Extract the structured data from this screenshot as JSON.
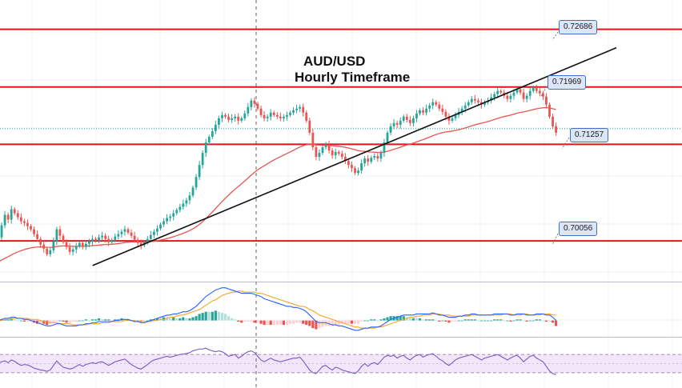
{
  "title": {
    "line1": "AUD/USD",
    "line2": "Hourly Timeframe"
  },
  "colors": {
    "bull": "#26a69a",
    "bear": "#ef5350",
    "level_line": "#e0141e",
    "ema": "#e8564f",
    "trendline": "#111111",
    "macd": "#2962ff",
    "signal": "#f5a623",
    "rsi": "#7e57c2",
    "rsi_band": "#f2e6fb",
    "tag_bg": "#dce6f7",
    "tag_border": "#3f6fc4"
  },
  "chart_data": [
    {
      "type": "candlestick",
      "title": "AUD/USD Hourly Timeframe",
      "ylim": [
        0.6955,
        0.7305
      ],
      "levels": [
        {
          "label": "0.72686",
          "value": 0.72686
        },
        {
          "label": "0.71969",
          "value": 0.71969
        },
        {
          "label": "0.71257",
          "value": 0.71257
        },
        {
          "label": "0.70056",
          "value": 0.70056
        }
      ],
      "closes": [
        0.701,
        0.7025,
        0.7038,
        0.7032,
        0.7045,
        0.704,
        0.7035,
        0.703,
        0.7028,
        0.7024,
        0.702,
        0.7014,
        0.7008,
        0.7001,
        0.6996,
        0.6989,
        0.6994,
        0.7005,
        0.702,
        0.7012,
        0.7004,
        0.6998,
        0.6992,
        0.6995,
        0.6999,
        0.7003,
        0.6998,
        0.7002,
        0.7005,
        0.7008,
        0.7006,
        0.701,
        0.7012,
        0.7008,
        0.7004,
        0.7007,
        0.7011,
        0.7014,
        0.7017,
        0.702,
        0.7016,
        0.7012,
        0.7007,
        0.7003,
        0.7,
        0.7004,
        0.7008,
        0.7013,
        0.7017,
        0.7021,
        0.7026,
        0.703,
        0.7034,
        0.7036,
        0.704,
        0.7044,
        0.7048,
        0.7052,
        0.7056,
        0.7062,
        0.7072,
        0.7085,
        0.71,
        0.7115,
        0.7128,
        0.7135,
        0.7142,
        0.715,
        0.7158,
        0.7162,
        0.716,
        0.7156,
        0.7158,
        0.716,
        0.7155,
        0.7158,
        0.7164,
        0.7172,
        0.718,
        0.7176,
        0.717,
        0.7162,
        0.7158,
        0.716,
        0.7165,
        0.7162,
        0.716,
        0.7158,
        0.716,
        0.7162,
        0.7165,
        0.7168,
        0.717,
        0.7172,
        0.7165,
        0.7155,
        0.714,
        0.7122,
        0.711,
        0.7115,
        0.7122,
        0.7125,
        0.7118,
        0.7112,
        0.7116,
        0.7114,
        0.711,
        0.7105,
        0.71,
        0.7096,
        0.709,
        0.7093,
        0.7102,
        0.7108,
        0.7104,
        0.7109,
        0.7111,
        0.7108,
        0.7115,
        0.7128,
        0.714,
        0.7148,
        0.7152,
        0.715,
        0.7155,
        0.716,
        0.7156,
        0.7152,
        0.7158,
        0.7164,
        0.7168,
        0.7165,
        0.717,
        0.7174,
        0.7178,
        0.7175,
        0.717,
        0.7166,
        0.716,
        0.7155,
        0.7158,
        0.7162,
        0.7166,
        0.717,
        0.7174,
        0.7178,
        0.7182,
        0.718,
        0.7178,
        0.7175,
        0.7178,
        0.718,
        0.7184,
        0.7188,
        0.7192,
        0.719,
        0.7186,
        0.7182,
        0.7186,
        0.719,
        0.7194,
        0.719,
        0.7182,
        0.7186,
        0.7192,
        0.7196,
        0.7192,
        0.7189,
        0.7185,
        0.7175,
        0.716,
        0.7148,
        0.714
      ],
      "ema_period": 50,
      "trendline": [
        {
          "bar": 13,
          "value": 0.6975
        },
        {
          "bar": 140,
          "value": 0.7188
        }
      ]
    },
    {
      "type": "macd",
      "macd": [
        0.0,
        0.1,
        0.2,
        0.2,
        0.3,
        0.3,
        0.2,
        0.2,
        0.1,
        0.1,
        0.0,
        -0.1,
        -0.2,
        -0.3,
        -0.4,
        -0.5,
        -0.5,
        -0.4,
        -0.3,
        -0.3,
        -0.4,
        -0.5,
        -0.5,
        -0.5,
        -0.5,
        -0.4,
        -0.4,
        -0.3,
        -0.3,
        -0.2,
        -0.2,
        -0.1,
        -0.1,
        -0.1,
        -0.1,
        -0.1,
        0.0,
        0.0,
        0.1,
        0.1,
        0.1,
        0.0,
        -0.1,
        -0.1,
        -0.2,
        -0.2,
        -0.1,
        0.0,
        0.1,
        0.2,
        0.3,
        0.4,
        0.5,
        0.5,
        0.6,
        0.6,
        0.7,
        0.8,
        0.8,
        0.9,
        1.1,
        1.3,
        1.6,
        1.9,
        2.2,
        2.4,
        2.6,
        2.8,
        2.9,
        3.0,
        3.0,
        2.9,
        2.8,
        2.7,
        2.6,
        2.5,
        2.5,
        2.5,
        2.5,
        2.4,
        2.3,
        2.2,
        2.0,
        1.9,
        1.8,
        1.7,
        1.6,
        1.5,
        1.4,
        1.3,
        1.3,
        1.2,
        1.2,
        1.1,
        1.0,
        0.8,
        0.5,
        0.2,
        -0.1,
        -0.2,
        -0.2,
        -0.2,
        -0.3,
        -0.4,
        -0.4,
        -0.5,
        -0.5,
        -0.6,
        -0.7,
        -0.8,
        -0.9,
        -0.9,
        -0.8,
        -0.7,
        -0.7,
        -0.6,
        -0.6,
        -0.6,
        -0.5,
        -0.3,
        -0.1,
        0.1,
        0.2,
        0.3,
        0.4,
        0.5,
        0.5,
        0.5,
        0.5,
        0.6,
        0.6,
        0.6,
        0.6,
        0.6,
        0.7,
        0.6,
        0.5,
        0.5,
        0.4,
        0.3,
        0.3,
        0.3,
        0.4,
        0.4,
        0.5,
        0.5,
        0.6,
        0.6,
        0.5,
        0.5,
        0.5,
        0.5,
        0.5,
        0.6,
        0.6,
        0.6,
        0.6,
        0.6,
        0.5,
        0.5,
        0.6,
        0.6,
        0.6,
        0.5,
        0.5,
        0.5,
        0.6,
        0.6,
        0.6,
        0.5,
        0.5,
        0.3,
        0.0,
        -0.3,
        -0.6
      ],
      "signal": [
        0.0,
        0.0,
        0.1,
        0.1,
        0.1,
        0.2,
        0.2,
        0.2,
        0.2,
        0.2,
        0.1,
        0.1,
        0.1,
        0.0,
        -0.1,
        -0.1,
        -0.2,
        -0.2,
        -0.2,
        -0.3,
        -0.3,
        -0.3,
        -0.3,
        -0.4,
        -0.4,
        -0.4,
        -0.4,
        -0.4,
        -0.3,
        -0.3,
        -0.3,
        -0.3,
        -0.2,
        -0.2,
        -0.2,
        -0.1,
        -0.1,
        -0.1,
        -0.1,
        0.0,
        0.0,
        0.0,
        0.0,
        -0.1,
        -0.1,
        -0.1,
        -0.1,
        -0.1,
        0.0,
        0.0,
        0.1,
        0.1,
        0.2,
        0.3,
        0.3,
        0.4,
        0.5,
        0.5,
        0.6,
        0.7,
        0.8,
        0.9,
        1.0,
        1.2,
        1.4,
        1.6,
        1.8,
        1.9,
        2.1,
        2.3,
        2.4,
        2.5,
        2.6,
        2.6,
        2.7,
        2.7,
        2.6,
        2.6,
        2.6,
        2.6,
        2.5,
        2.5,
        2.4,
        2.3,
        2.2,
        2.1,
        2.0,
        1.9,
        1.8,
        1.7,
        1.6,
        1.5,
        1.4,
        1.3,
        1.3,
        1.2,
        1.0,
        0.9,
        0.7,
        0.5,
        0.4,
        0.3,
        0.2,
        0.1,
        0.0,
        -0.1,
        -0.2,
        -0.3,
        -0.4,
        -0.5,
        -0.6,
        -0.6,
        -0.7,
        -0.7,
        -0.7,
        -0.7,
        -0.7,
        -0.6,
        -0.6,
        -0.5,
        -0.4,
        -0.3,
        -0.2,
        -0.1,
        0.0,
        0.1,
        0.2,
        0.3,
        0.3,
        0.4,
        0.4,
        0.5,
        0.5,
        0.5,
        0.6,
        0.6,
        0.6,
        0.5,
        0.5,
        0.5,
        0.4,
        0.4,
        0.4,
        0.4,
        0.4,
        0.4,
        0.5,
        0.5,
        0.5,
        0.5,
        0.5,
        0.5,
        0.5,
        0.5,
        0.5,
        0.5,
        0.6,
        0.6,
        0.6,
        0.5,
        0.5,
        0.5,
        0.6,
        0.6,
        0.5,
        0.5,
        0.5,
        0.5,
        0.6,
        0.6,
        0.6,
        0.5,
        0.5,
        0.4,
        0.3,
        0.2
      ]
    },
    {
      "type": "rsi",
      "band": [
        30,
        70
      ],
      "rsi": [
        52,
        54,
        56,
        52,
        58,
        55,
        50,
        46,
        48,
        47,
        44,
        40,
        38,
        36,
        35,
        33,
        36,
        46,
        56,
        48,
        42,
        40,
        38,
        40,
        44,
        48,
        44,
        48,
        50,
        52,
        50,
        53,
        54,
        50,
        46,
        50,
        54,
        56,
        58,
        60,
        54,
        48,
        44,
        40,
        38,
        43,
        48,
        54,
        58,
        60,
        62,
        64,
        66,
        64,
        66,
        68,
        70,
        71,
        72,
        74,
        78,
        80,
        82,
        82,
        84,
        80,
        78,
        76,
        78,
        76,
        72,
        66,
        68,
        70,
        62,
        66,
        72,
        76,
        78,
        74,
        66,
        58,
        54,
        58,
        62,
        58,
        56,
        54,
        56,
        58,
        60,
        62,
        62,
        64,
        56,
        46,
        36,
        30,
        28,
        36,
        44,
        46,
        40,
        36,
        42,
        40,
        36,
        34,
        32,
        30,
        28,
        34,
        44,
        50,
        44,
        50,
        52,
        48,
        56,
        64,
        68,
        66,
        68,
        62,
        66,
        68,
        62,
        58,
        64,
        68,
        70,
        64,
        68,
        70,
        72,
        66,
        60,
        56,
        50,
        46,
        52,
        58,
        62,
        64,
        66,
        68,
        70,
        66,
        62,
        58,
        62,
        64,
        66,
        68,
        70,
        66,
        62,
        58,
        62,
        66,
        68,
        62,
        54,
        60,
        66,
        68,
        62,
        58,
        54,
        44,
        34,
        28,
        26
      ]
    }
  ]
}
